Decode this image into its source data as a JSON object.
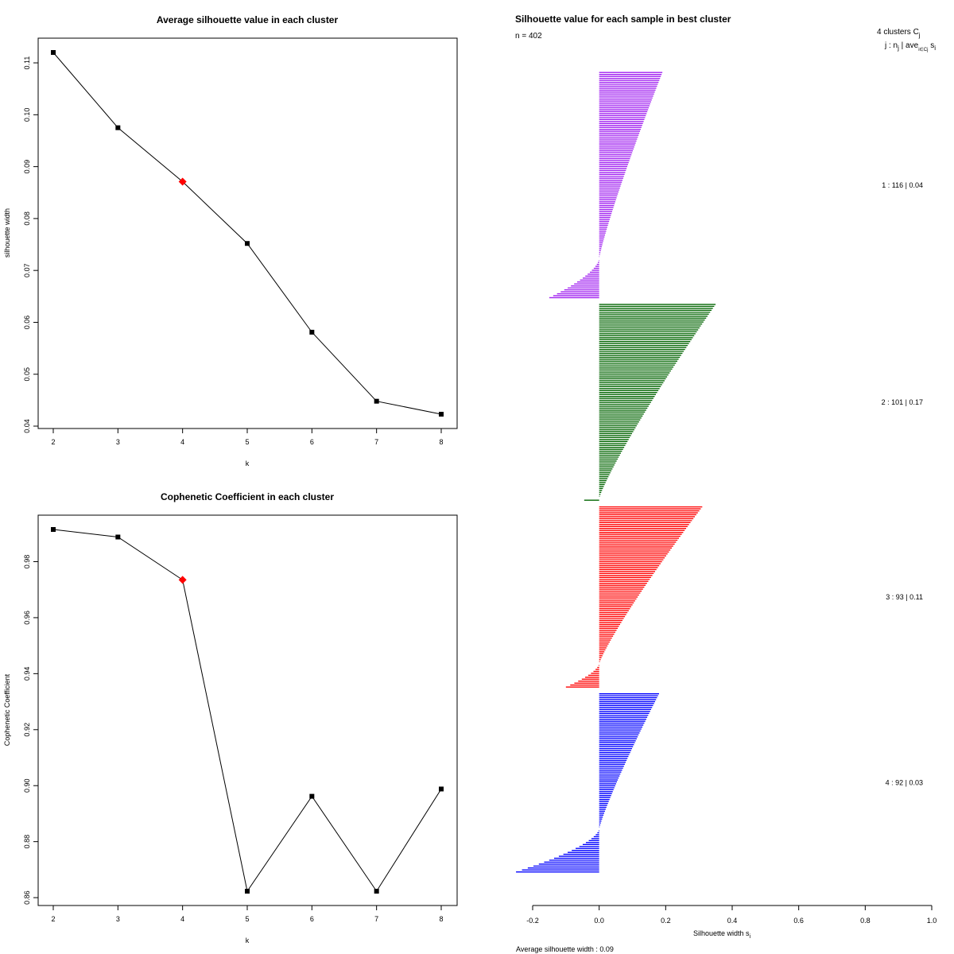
{
  "chart_data": [
    {
      "type": "line",
      "title": "Average silhouette value in each cluster",
      "xlabel": "k",
      "ylabel": "silhouette width",
      "x": [
        2,
        3,
        4,
        5,
        6,
        7,
        8
      ],
      "values": [
        0.112,
        0.0975,
        0.0871,
        0.0752,
        0.0581,
        0.0448,
        0.0423
      ],
      "highlight_index": 2,
      "highlight_color": "#ff0000",
      "ylim": [
        0.04,
        0.11
      ],
      "xticks": [
        2,
        3,
        4,
        5,
        6,
        7,
        8
      ],
      "yticks": [
        0.04,
        0.05,
        0.06,
        0.07,
        0.08,
        0.09,
        0.1,
        0.11
      ],
      "ytick_labels": [
        "0.04",
        "0.05",
        "0.06",
        "0.07",
        "0.08",
        "0.09",
        "0.10",
        "0.11"
      ]
    },
    {
      "type": "line",
      "title": "Cophenetic Coefficient in each cluster",
      "xlabel": "k",
      "ylabel": "Cophenetic Coefficient",
      "x": [
        2,
        3,
        4,
        5,
        6,
        7,
        8
      ],
      "values": [
        0.9915,
        0.9888,
        0.9735,
        0.8623,
        0.8962,
        0.8623,
        0.8988
      ],
      "highlight_index": 2,
      "highlight_color": "#ff0000",
      "ylim": [
        0.86,
        0.98
      ],
      "xticks": [
        2,
        3,
        4,
        5,
        6,
        7,
        8
      ],
      "yticks": [
        0.86,
        0.88,
        0.9,
        0.92,
        0.94,
        0.96,
        0.98
      ],
      "ytick_labels": [
        "0.86",
        "0.88",
        "0.90",
        "0.92",
        "0.94",
        "0.96",
        "0.98"
      ]
    },
    {
      "type": "bar",
      "orientation": "horizontal",
      "title": "Silhouette value for each sample in best cluster",
      "n_label": "n = 402",
      "xlabel": "Silhouette width s",
      "xlabel_sub": "i",
      "xlim": [
        -0.2,
        1.0
      ],
      "xticks": [
        -0.2,
        0.0,
        0.2,
        0.4,
        0.6,
        0.8,
        1.0
      ],
      "xtick_labels": [
        "-0.2",
        "0.0",
        "0.2",
        "0.4",
        "0.6",
        "0.8",
        "1.0"
      ],
      "footer": "Average silhouette width :  0.09",
      "header_clusters": "4  clusters  C",
      "header_clusters_sub": "j",
      "header_columns": "j :  n",
      "header_columns_sub": "j",
      "header_columns_rest": " | ave",
      "header_columns_sub2": "i∈Cj",
      "header_columns_end": " s",
      "header_columns_sub3": "i",
      "clusters": [
        {
          "label": "1 :   116  |  0.04",
          "n": 116,
          "color": "#a020f0",
          "max": 0.19,
          "min_pos": 0.0,
          "n_neg": 20,
          "min": -0.15
        },
        {
          "label": "2 :   101  |  0.17",
          "n": 101,
          "color": "#006400",
          "max": 0.35,
          "min_pos": 0.0,
          "n_neg": 1,
          "min": -0.045
        },
        {
          "label": "3 :   93  |  0.11",
          "n": 93,
          "color": "#ff0000",
          "max": 0.31,
          "min_pos": 0.0,
          "n_neg": 12,
          "min": -0.1
        },
        {
          "label": "4 :   92  |  0.03",
          "n": 92,
          "color": "#0000ff",
          "max": 0.18,
          "min_pos": 0.0,
          "n_neg": 22,
          "min": -0.25
        }
      ]
    }
  ]
}
